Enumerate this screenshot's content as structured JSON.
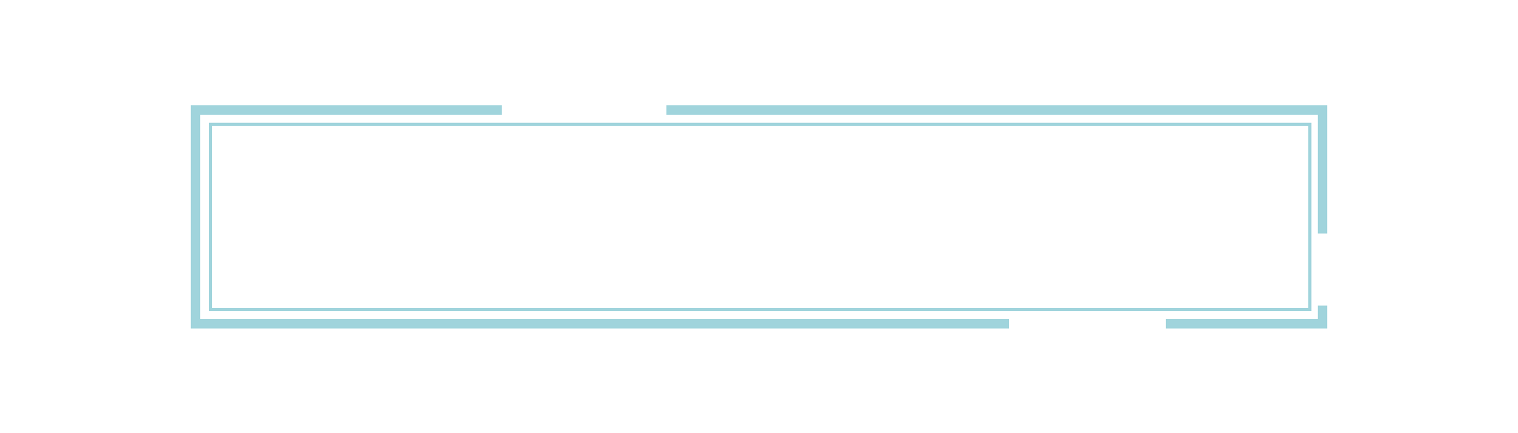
{
  "colors": {
    "background": "#ffffff",
    "frame_stroke": "#a0d4dc"
  },
  "frame": {
    "style": "double-border-with-gaps",
    "inner_text": ""
  }
}
